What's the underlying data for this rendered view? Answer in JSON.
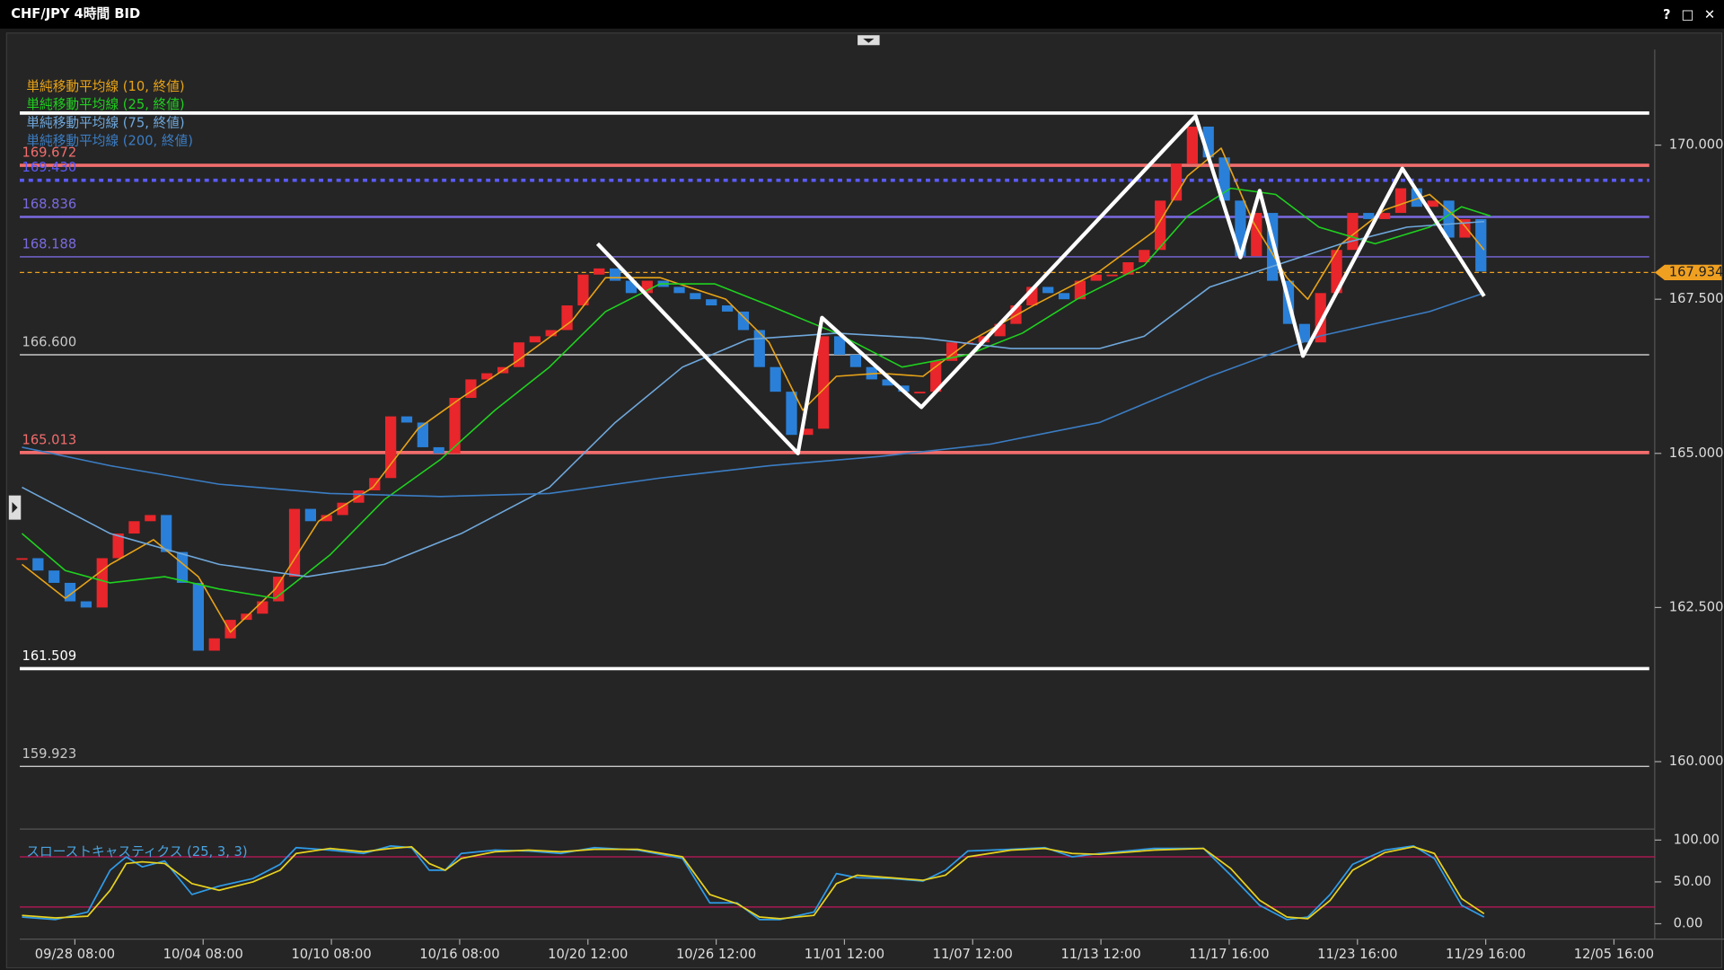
{
  "window": {
    "buttons": [
      "?",
      "□",
      "✕"
    ]
  },
  "chart_data": [
    {
      "type": "candlestick",
      "title": "CHF/JPY 4時間 BID",
      "x": [
        0,
        1,
        2,
        3,
        4,
        5,
        6,
        7,
        8,
        9,
        10,
        11,
        12,
        13,
        14,
        15,
        16,
        17,
        18,
        19,
        20,
        21,
        22,
        23,
        24,
        25,
        26,
        27,
        28,
        29,
        30,
        31,
        32,
        33,
        34,
        35,
        36,
        37,
        38,
        39,
        40,
        41,
        42,
        43,
        44,
        45,
        46,
        47,
        48,
        49,
        50,
        51,
        52,
        53,
        54,
        55,
        56,
        57,
        58,
        59,
        60,
        61,
        62,
        63,
        64,
        65,
        66,
        67,
        68,
        69,
        70,
        71,
        72,
        73,
        74,
        75,
        76,
        77,
        78,
        79,
        80,
        81,
        82,
        83,
        84,
        85,
        86,
        87,
        88,
        89,
        90,
        91
      ],
      "close": [
        163.3,
        163.1,
        162.9,
        162.6,
        162.5,
        163.3,
        163.7,
        163.9,
        164.0,
        163.4,
        162.9,
        161.8,
        162.0,
        162.3,
        162.4,
        162.6,
        163.0,
        164.1,
        163.9,
        164.0,
        164.2,
        164.4,
        164.6,
        165.6,
        165.5,
        165.1,
        165.0,
        165.9,
        166.2,
        166.3,
        166.4,
        166.8,
        166.9,
        167.0,
        167.4,
        167.9,
        168.0,
        167.8,
        167.6,
        167.8,
        167.7,
        167.6,
        167.5,
        167.4,
        167.3,
        167.0,
        166.4,
        166.0,
        165.3,
        165.4,
        166.9,
        166.6,
        166.4,
        166.2,
        166.1,
        166.0,
        166.0,
        166.5,
        166.8,
        166.8,
        166.9,
        167.1,
        167.4,
        167.7,
        167.6,
        167.5,
        167.8,
        167.9,
        167.9,
        168.1,
        168.3,
        169.1,
        169.7,
        170.3,
        169.8,
        169.1,
        168.2,
        168.9,
        167.8,
        167.1,
        166.8,
        167.6,
        168.3,
        168.9,
        168.8,
        168.9,
        169.3,
        169.0,
        169.1,
        168.5,
        168.8,
        167.95
      ],
      "up_color": "#e8262b",
      "down_color": "#2a80d8",
      "xlim": [
        0,
        101.5
      ],
      "xticks": [
        {
          "value": 3.3,
          "label": "09/28 08:00"
        },
        {
          "value": 11.3,
          "label": "10/04 08:00"
        },
        {
          "value": 19.3,
          "label": "10/10 08:00"
        },
        {
          "value": 27.3,
          "label": "10/16 08:00"
        },
        {
          "value": 35.3,
          "label": "10/20 12:00"
        },
        {
          "value": 43.3,
          "label": "10/26 12:00"
        },
        {
          "value": 51.3,
          "label": "11/01 12:00"
        },
        {
          "value": 59.3,
          "label": "11/07 12:00"
        },
        {
          "value": 67.3,
          "label": "11/13 12:00"
        },
        {
          "value": 75.3,
          "label": "11/17 16:00"
        },
        {
          "value": 83.3,
          "label": "11/23 16:00"
        },
        {
          "value": 91.3,
          "label": "11/29 16:00"
        },
        {
          "value": 99.3,
          "label": "12/05 16:00"
        }
      ],
      "ylim": [
        158.96,
        171.55
      ],
      "yticks": [
        {
          "value": 170,
          "label": "170.000"
        },
        {
          "value": 167.5,
          "label": "167.500"
        },
        {
          "value": 165,
          "label": "165.000"
        },
        {
          "value": 162.5,
          "label": "162.500"
        },
        {
          "value": 160,
          "label": "160.000"
        }
      ],
      "series": [
        {
          "name": "単純移動平均線 (10, 終値)",
          "color": "#e8a317",
          "x": [
            0,
            2.7,
            5.5,
            8.2,
            11.0,
            13.0,
            15.8,
            18.5,
            21.9,
            24.7,
            27.4,
            30.9,
            34.3,
            36.4,
            39.8,
            43.9,
            46.6,
            48.7,
            50.8,
            53.5,
            56.2,
            59.0,
            63.1,
            67.2,
            70.6,
            72.7,
            74.8,
            76.8,
            78.9,
            80.2,
            82.3,
            85.0,
            87.8,
            89.8,
            91.2
          ],
          "values": [
            163.2,
            162.65,
            163.2,
            163.6,
            163.0,
            162.1,
            162.8,
            163.9,
            164.45,
            165.4,
            165.9,
            166.5,
            167.15,
            167.85,
            167.85,
            167.5,
            166.8,
            165.7,
            166.25,
            166.3,
            166.25,
            166.8,
            167.4,
            167.95,
            168.6,
            169.5,
            169.95,
            168.75,
            167.85,
            167.5,
            168.4,
            168.95,
            169.2,
            168.75,
            168.3
          ]
        },
        {
          "name": "単純移動平均線 (25, 終値)",
          "color": "#1fd11f",
          "x": [
            0,
            2.7,
            5.5,
            8.9,
            12.3,
            15.8,
            19.2,
            22.6,
            26.1,
            29.5,
            32.9,
            36.4,
            39.8,
            43.2,
            46.6,
            50.8,
            54.9,
            59.0,
            62.4,
            65.8,
            70.0,
            72.7,
            75.4,
            78.2,
            80.9,
            84.4,
            87.8,
            89.8,
            91.6
          ],
          "values": [
            163.7,
            163.1,
            162.9,
            163.0,
            162.8,
            162.65,
            163.35,
            164.25,
            164.9,
            165.7,
            166.4,
            167.3,
            167.75,
            167.75,
            167.4,
            166.95,
            166.4,
            166.6,
            166.95,
            167.5,
            168.05,
            168.85,
            169.3,
            169.2,
            168.67,
            168.4,
            168.67,
            169.0,
            168.85
          ]
        },
        {
          "name": "単純移動平均線 (75, 終値)",
          "color": "#6fa8dc",
          "x": [
            0,
            5.5,
            12.3,
            17.8,
            22.6,
            27.4,
            32.9,
            37.0,
            41.2,
            45.3,
            50.8,
            56.2,
            61.7,
            67.2,
            70.0,
            74.1,
            78.2,
            82.3,
            86.4,
            91.2
          ],
          "values": [
            164.45,
            163.7,
            163.2,
            163.0,
            163.2,
            163.7,
            164.45,
            165.5,
            166.4,
            166.85,
            166.95,
            166.87,
            166.7,
            166.7,
            166.9,
            167.7,
            168.05,
            168.4,
            168.67,
            168.76
          ]
        },
        {
          "name": "単純移動平均線 (200, 終値)",
          "color": "#3b7dc4",
          "x": [
            0,
            5.5,
            12.3,
            19.2,
            26.1,
            32.9,
            39.8,
            46.6,
            53.5,
            60.4,
            67.2,
            74.1,
            80.9,
            87.8,
            91.2
          ],
          "values": [
            165.1,
            164.8,
            164.5,
            164.35,
            164.3,
            164.35,
            164.6,
            164.8,
            164.95,
            165.15,
            165.5,
            166.25,
            166.9,
            167.3,
            167.6
          ]
        }
      ],
      "levels": [
        {
          "value": 170.52,
          "color": "#ffffff",
          "style": "thick"
        },
        {
          "value": 169.672,
          "label": "169.672",
          "color": "#f26d6d",
          "style": "thick"
        },
        {
          "value": 169.43,
          "label": "169.430",
          "color": "#5b5bff",
          "style": "dotted"
        },
        {
          "value": 168.836,
          "label": "168.836",
          "color": "#7a6ae0",
          "style": "medium"
        },
        {
          "value": 168.188,
          "label": "168.188",
          "color": "#7a6ae0",
          "style": "thin"
        },
        {
          "value": 166.6,
          "label": "166.600",
          "color": "#c8c8c8",
          "style": "thin"
        },
        {
          "value": 165.013,
          "label": "165.013",
          "color": "#f26d6d",
          "style": "thick"
        },
        {
          "value": 161.509,
          "label": "161.509",
          "color": "#ffffff",
          "style": "thick"
        },
        {
          "value": 159.923,
          "label": "159.923",
          "color": "#c8c8c8",
          "style": "thin"
        }
      ],
      "last_price": {
        "value": 167.934,
        "label": "167.934",
        "color": "#f0a020"
      },
      "zigzag": {
        "color": "#ffffff",
        "x": [
          35.9,
          48.4,
          49.9,
          56.1,
          73.2,
          76.0,
          77.2,
          79.9,
          86.1,
          91.2
        ],
        "values": [
          168.4,
          165.0,
          167.2,
          165.75,
          170.47,
          168.18,
          169.26,
          166.58,
          169.62,
          167.55
        ]
      }
    },
    {
      "type": "line",
      "title": "スローストキャスティクス (25, 3, 3)",
      "title_color": "#4aa3df",
      "x": [
        0,
        2.1,
        4.1,
        5.5,
        6.5,
        7.5,
        8.9,
        10.6,
        12.3,
        14.4,
        16.1,
        17.1,
        19.2,
        21.3,
        23.0,
        24.3,
        25.4,
        26.4,
        27.4,
        29.5,
        31.6,
        33.6,
        35.7,
        38.4,
        41.2,
        42.9,
        44.6,
        46.0,
        47.3,
        49.4,
        50.8,
        52.1,
        54.2,
        56.2,
        57.6,
        59.0,
        61.7,
        63.8,
        65.5,
        67.2,
        70.6,
        73.7,
        75.4,
        77.2,
        78.9,
        80.2,
        81.6,
        83.0,
        85.0,
        86.8,
        88.1,
        89.8,
        91.2
      ],
      "series": [
        {
          "color": "#2f9be8",
          "values": [
            8,
            5,
            14,
            64,
            80,
            68,
            75,
            35,
            45,
            54,
            71,
            91,
            88,
            84,
            93,
            91,
            64,
            64,
            84,
            88,
            87,
            84,
            91,
            88,
            78,
            25,
            25,
            5,
            5,
            14,
            60,
            55,
            54,
            51,
            64,
            87,
            89,
            91,
            80,
            84,
            90,
            90,
            58,
            22,
            5,
            8,
            35,
            71,
            88,
            93,
            78,
            22,
            8
          ]
        },
        {
          "color": "#e8d21f",
          "values": [
            10,
            7,
            9,
            40,
            72,
            74,
            72,
            48,
            40,
            50,
            64,
            84,
            90,
            86,
            90,
            92,
            72,
            64,
            78,
            86,
            88,
            86,
            89,
            89,
            80,
            35,
            24,
            8,
            6,
            10,
            48,
            58,
            55,
            52,
            58,
            80,
            88,
            90,
            84,
            83,
            88,
            90,
            66,
            28,
            8,
            6,
            28,
            64,
            85,
            92,
            84,
            30,
            12
          ]
        }
      ],
      "levels": [
        {
          "value": 80,
          "color": "#c2185b"
        },
        {
          "value": 20,
          "color": "#c2185b"
        }
      ],
      "ylim": [
        -14.5,
        107.9
      ],
      "yticks": [
        {
          "value": 100,
          "label": "100.00"
        },
        {
          "value": 50,
          "label": "50.00"
        },
        {
          "value": 0,
          "label": "0.00"
        }
      ]
    }
  ]
}
